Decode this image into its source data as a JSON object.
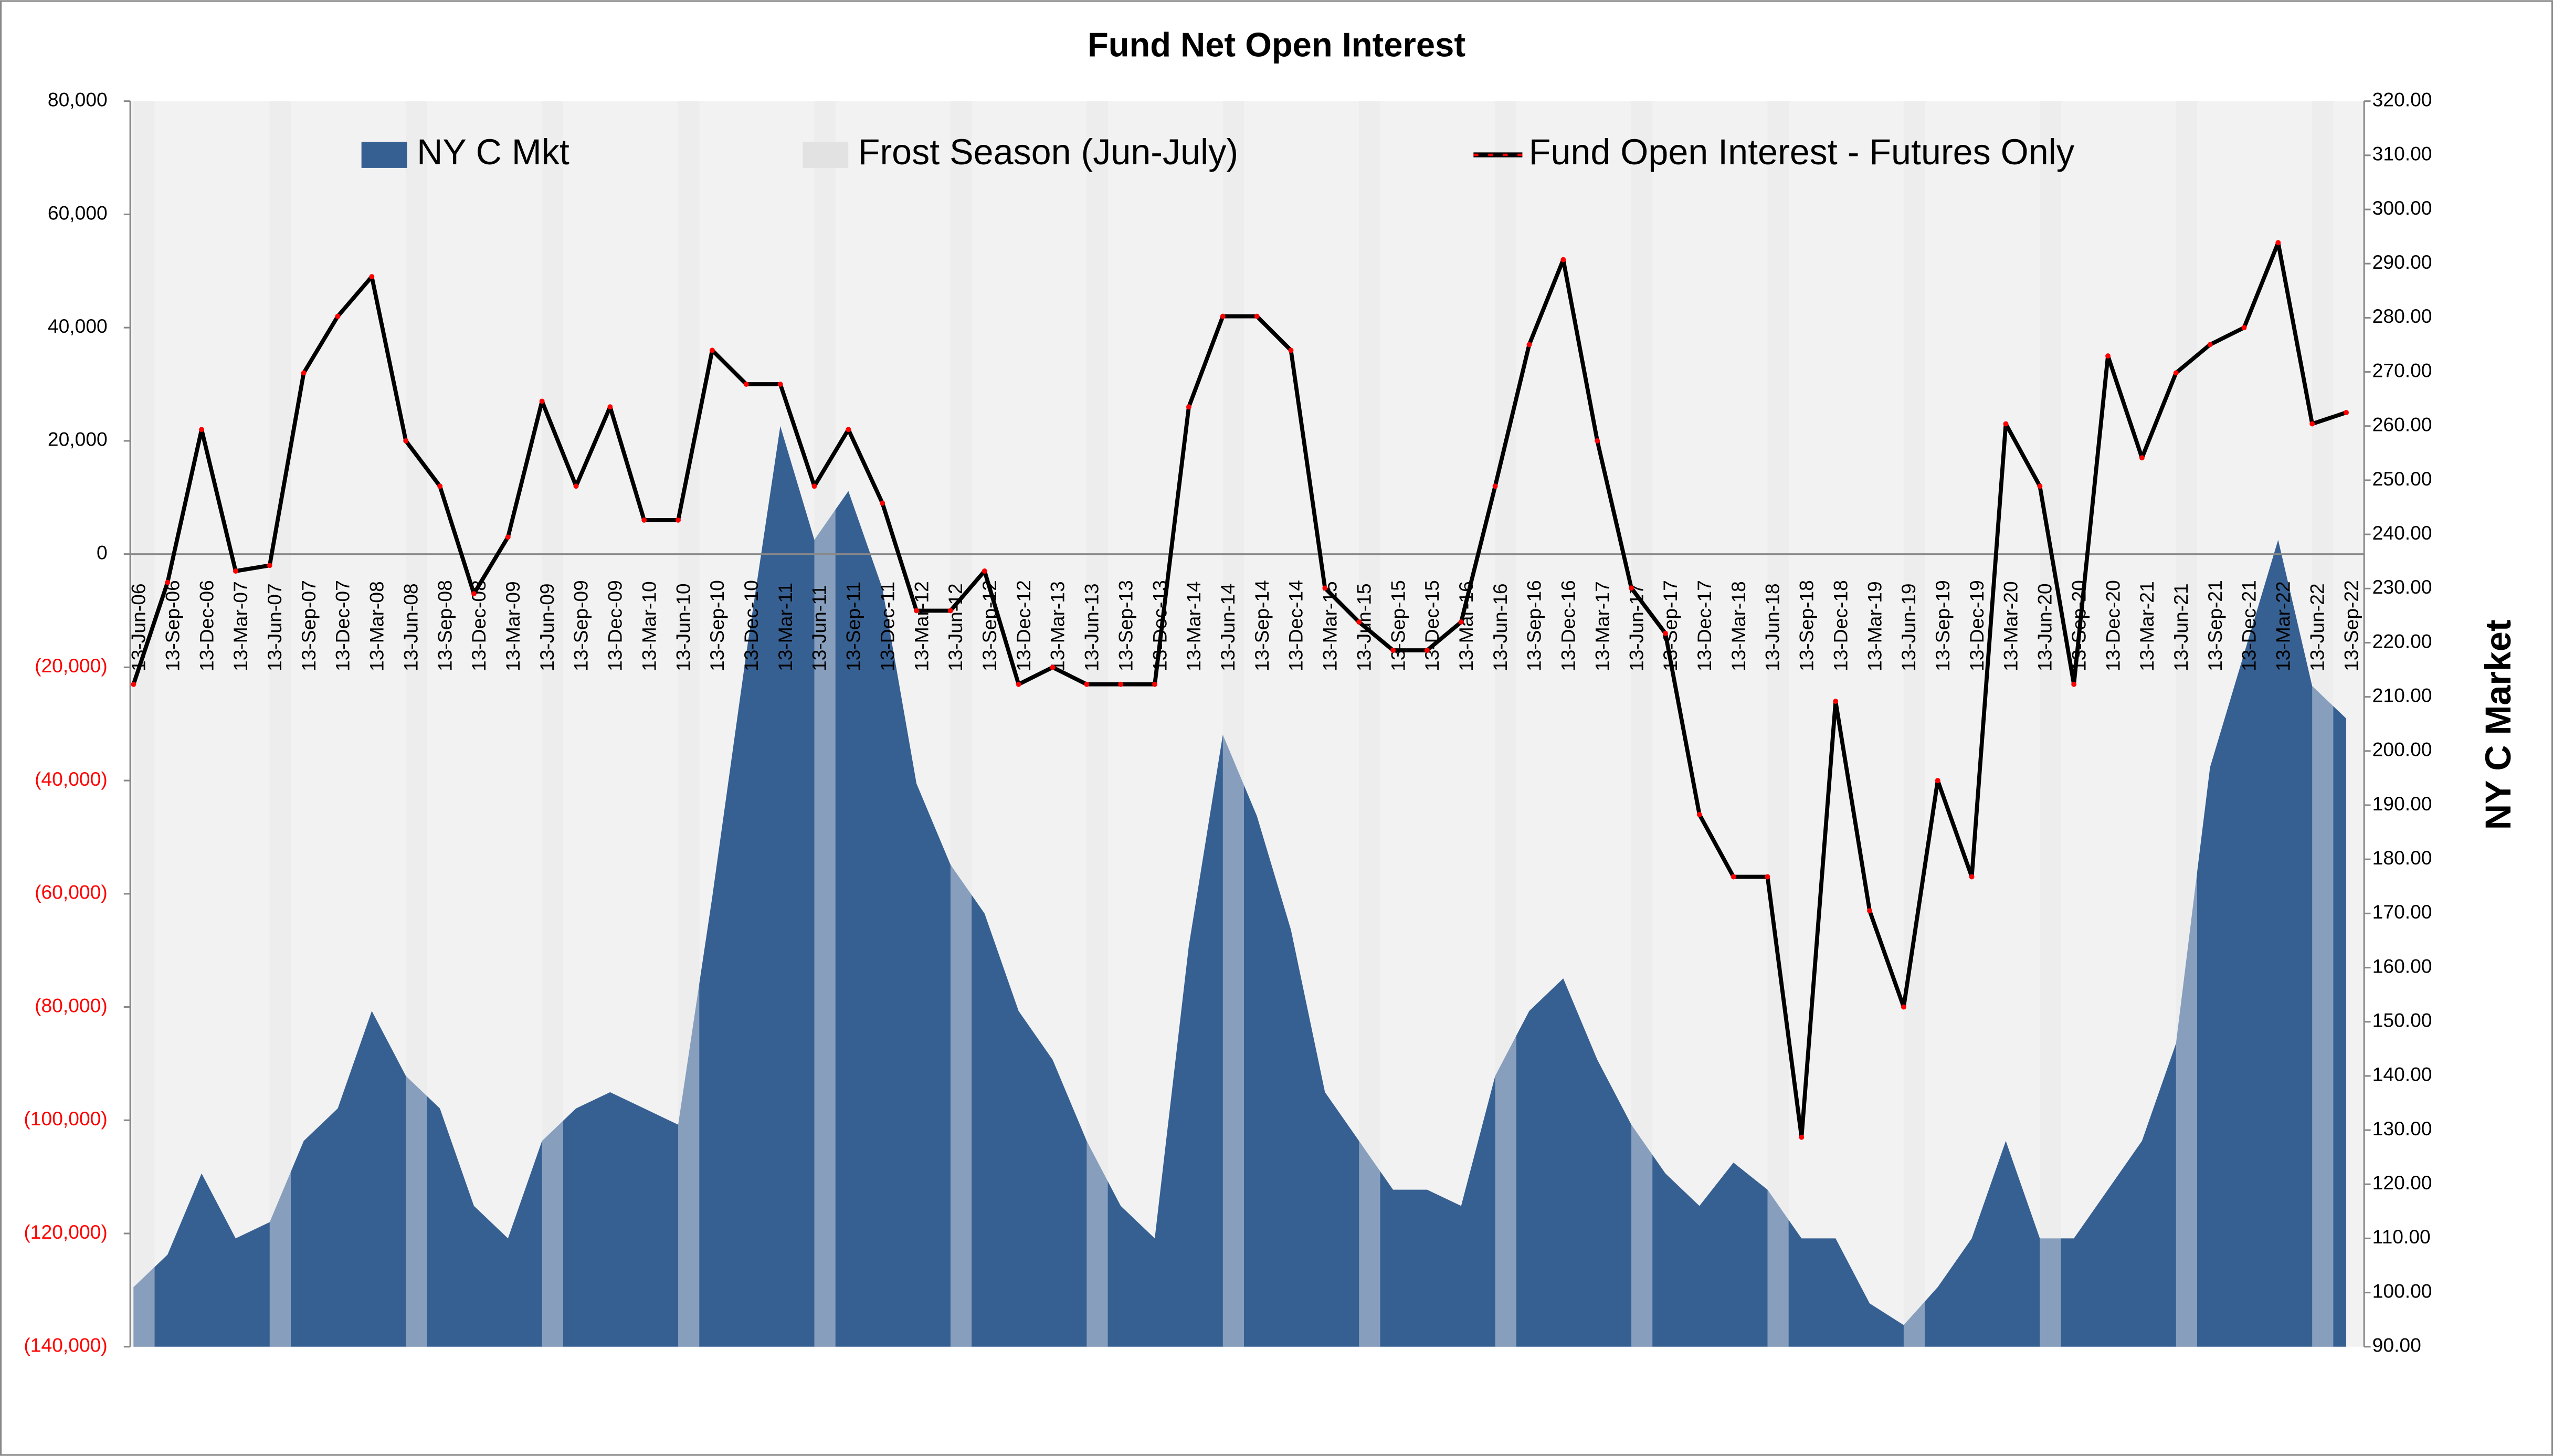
{
  "chart_data": {
    "type": "combo",
    "title": "Fund Net Open Interest",
    "y2_label": "NY C Market",
    "categories": [
      "13-Jun-06",
      "13-Sep-06",
      "13-Dec-06",
      "13-Mar-07",
      "13-Jun-07",
      "13-Sep-07",
      "13-Dec-07",
      "13-Mar-08",
      "13-Jun-08",
      "13-Sep-08",
      "13-Dec-08",
      "13-Mar-09",
      "13-Jun-09",
      "13-Sep-09",
      "13-Dec-09",
      "13-Mar-10",
      "13-Jun-10",
      "13-Sep-10",
      "13-Dec-10",
      "13-Mar-11",
      "13-Jun-11",
      "13-Sep-11",
      "13-Dec-11",
      "13-Mar-12",
      "13-Jun-12",
      "13-Sep-12",
      "13-Dec-12",
      "13-Mar-13",
      "13-Jun-13",
      "13-Sep-13",
      "13-Dec-13",
      "13-Mar-14",
      "13-Jun-14",
      "13-Sep-14",
      "13-Dec-14",
      "13-Mar-15",
      "13-Jun-15",
      "13-Sep-15",
      "13-Dec-15",
      "13-Mar-16",
      "13-Jun-16",
      "13-Sep-16",
      "13-Dec-16",
      "13-Mar-17",
      "13-Jun-17",
      "13-Sep-17",
      "13-Dec-17",
      "13-Mar-18",
      "13-Jun-18",
      "13-Sep-18",
      "13-Dec-18",
      "13-Mar-19",
      "13-Jun-19",
      "13-Sep-19",
      "13-Dec-19",
      "13-Mar-20",
      "13-Jun-20",
      "13-Sep-20",
      "13-Dec-20",
      "13-Mar-21",
      "13-Jun-21",
      "13-Sep-21",
      "13-Dec-21",
      "13-Mar-22",
      "13-Jun-22",
      "13-Sep-22"
    ],
    "series": [
      {
        "name": "NY C Mkt",
        "type": "area",
        "axis": "y2",
        "color": "#376092",
        "values": [
          101,
          107,
          122,
          110,
          113,
          128,
          134,
          152,
          140,
          134,
          116,
          110,
          128,
          134,
          137,
          134,
          131,
          173,
          218,
          260,
          239,
          248,
          230,
          194,
          179,
          170,
          152,
          143,
          128,
          116,
          110,
          164,
          203,
          188,
          167,
          137,
          128,
          119,
          119,
          116,
          140,
          152,
          158,
          143,
          131,
          122,
          116,
          124,
          119,
          110,
          110,
          98,
          94,
          101,
          110,
          128,
          110,
          110,
          119,
          128,
          146,
          197,
          218,
          239,
          212,
          206
        ]
      },
      {
        "name": "Frost Season (Jun-July)",
        "type": "band",
        "axis": "y2",
        "color": "#e2e2e2",
        "values": [
          320,
          null,
          null,
          null,
          320,
          null,
          null,
          null,
          320,
          null,
          null,
          null,
          320,
          null,
          null,
          null,
          320,
          null,
          null,
          null,
          320,
          null,
          null,
          null,
          320,
          null,
          null,
          null,
          320,
          null,
          null,
          null,
          320,
          null,
          null,
          null,
          320,
          null,
          null,
          null,
          320,
          null,
          null,
          null,
          320,
          null,
          null,
          null,
          320,
          null,
          null,
          null,
          320,
          null,
          null,
          null,
          320,
          null,
          null,
          null,
          320,
          null,
          null,
          null,
          320,
          null
        ]
      },
      {
        "name": "Fund Open Interest - Futures Only",
        "type": "line",
        "color": "#000000",
        "marker_color": "#ff0000",
        "values": [
          -23000,
          -5000,
          22000,
          -3000,
          -2000,
          32000,
          42000,
          49000,
          20000,
          12000,
          -7000,
          3000,
          27000,
          12000,
          26000,
          6000,
          6000,
          36000,
          30000,
          30000,
          12000,
          22000,
          9000,
          -10000,
          -10000,
          -3000,
          -23000,
          -20000,
          -23000,
          -23000,
          -23000,
          26000,
          42000,
          42000,
          36000,
          -6000,
          -12000,
          -17000,
          -17000,
          -12000,
          12000,
          37000,
          52000,
          20000,
          -6000,
          -14000,
          -46000,
          -57000,
          -57000,
          -103000,
          -26000,
          -63000,
          -80000,
          -40000,
          -57000,
          23000,
          12000,
          -23000,
          35000,
          17000,
          32000,
          37000,
          40000,
          55000,
          23000,
          25000
        ]
      }
    ],
    "ylim": [
      -140000,
      80000
    ],
    "yticks": [
      {
        "value": -140000,
        "label": "(140,000)"
      },
      {
        "value": -120000,
        "label": "(120,000)"
      },
      {
        "value": -100000,
        "label": "(100,000)"
      },
      {
        "value": -80000,
        "label": "(80,000)"
      },
      {
        "value": -60000,
        "label": "(60,000)"
      },
      {
        "value": -40000,
        "label": "(40,000)"
      },
      {
        "value": -20000,
        "label": "(20,000)"
      },
      0,
      {
        "value": 20000,
        "label": "20,000"
      },
      {
        "value": 40000,
        "label": "40,000"
      },
      {
        "value": 60000,
        "label": "60,000"
      },
      {
        "value": 80000,
        "label": "80,000"
      }
    ],
    "negative_tick_color": "#ff0000",
    "y2lim": [
      90,
      320
    ],
    "y2ticks": [
      {
        "value": 90,
        "label": "90.00"
      },
      {
        "value": 100,
        "label": "100.00"
      },
      {
        "value": 110,
        "label": "110.00"
      },
      {
        "value": 120,
        "label": "120.00"
      },
      {
        "value": 130,
        "label": "130.00"
      },
      {
        "value": 140,
        "label": "140.00"
      },
      {
        "value": 150,
        "label": "150.00"
      },
      {
        "value": 160,
        "label": "160.00"
      },
      {
        "value": 170,
        "label": "170.00"
      },
      {
        "value": 180,
        "label": "180.00"
      },
      {
        "value": 190,
        "label": "190.00"
      },
      {
        "value": 200,
        "label": "200.00"
      },
      {
        "value": 210,
        "label": "210.00"
      },
      {
        "value": 220,
        "label": "220.00"
      },
      {
        "value": 230,
        "label": "230.00"
      },
      {
        "value": 240,
        "label": "240.00"
      },
      {
        "value": 250,
        "label": "250.00"
      },
      {
        "value": 260,
        "label": "260.00"
      },
      {
        "value": 270,
        "label": "270.00"
      },
      {
        "value": 280,
        "label": "280.00"
      },
      {
        "value": 290,
        "label": "290.00"
      },
      {
        "value": 300,
        "label": "300.00"
      },
      {
        "value": 310,
        "label": "310.00"
      },
      {
        "value": 320,
        "label": "320.00"
      }
    ],
    "grid": false,
    "legend": "top"
  }
}
